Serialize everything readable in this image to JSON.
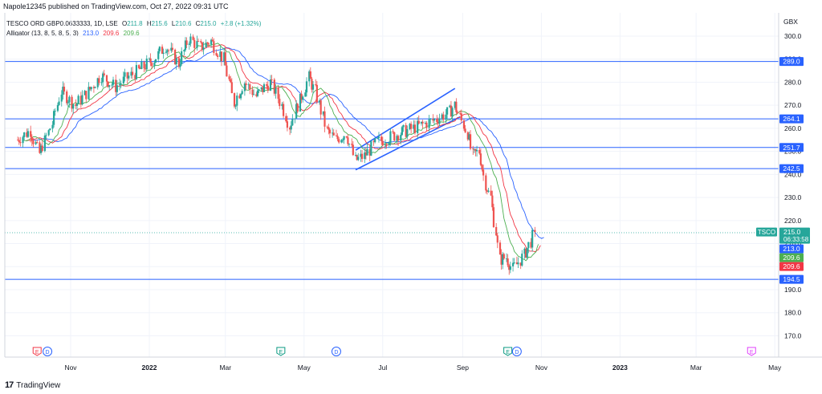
{
  "header": {
    "published": "Napole12345 published on TradingView.com, Oct 27, 2022 09:31 UTC"
  },
  "legend": {
    "symbol": "TESCO ORD GBP0.0633333, 1D, LSE",
    "open_label": "O",
    "open": "211.8",
    "high_label": "H",
    "high": "215.6",
    "low_label": "L",
    "low": "210.6",
    "close_label": "C",
    "close": "215.0",
    "change": "+2.8 (+1.32%)",
    "alligator_label": "Alligator (13, 8, 5, 8, 5, 3)",
    "jaw": "213.0",
    "teeth": "209.6",
    "lips": "209.6"
  },
  "footer": {
    "brand_mark": "17",
    "brand": "TradingView"
  },
  "colors": {
    "up": "#26a69a",
    "down": "#ef5350",
    "jaw": "#2962ff",
    "teeth": "#f23645",
    "lips": "#4caf50",
    "hline": "#2962ff",
    "earnings": "#f23645",
    "dividends": "#2962ff",
    "green_event": "#089981",
    "future_event": "#e040fb"
  },
  "chart_data": {
    "type": "candlestick",
    "currency": "GBX",
    "y_ticks": [
      "300.0",
      "290.0",
      "280.0",
      "270.0",
      "260.0",
      "250.0",
      "240.0",
      "230.0",
      "220.0",
      "210.0",
      "200.0",
      "190.0",
      "180.0",
      "170.0"
    ],
    "ylim": [
      160,
      306
    ],
    "x_labels": [
      "Nov",
      "2022",
      "Mar",
      "May",
      "Jul",
      "Sep",
      "Nov",
      "2023",
      "Mar",
      "May"
    ],
    "horizontal_levels": [
      {
        "value": 289.0,
        "label": "289.0"
      },
      {
        "value": 264.1,
        "label": "264.1"
      },
      {
        "value": 251.7,
        "label": "251.7"
      },
      {
        "value": 242.5,
        "label": "242.5"
      },
      {
        "value": 194.5,
        "label": "194.5"
      }
    ],
    "channel": {
      "upper": [
        {
          "date": "2022-06-10",
          "value": 250.5
        },
        {
          "date": "2022-08-26",
          "value": 277.3
        }
      ],
      "lower": [
        {
          "date": "2022-06-10",
          "value": 242.0
        },
        {
          "date": "2022-08-30",
          "value": 265.0
        }
      ]
    },
    "last_price": {
      "symbol": "TSCO",
      "value": "215.0",
      "countdown": "06:33:58"
    },
    "price_badges": [
      {
        "value": "213.0",
        "color": "#2962ff"
      },
      {
        "value": "209.6",
        "color": "#4caf50"
      },
      {
        "value": "209.6",
        "color": "#f23645"
      }
    ],
    "events": [
      {
        "date": "2021-10-06",
        "type": "E",
        "kind": "earnings"
      },
      {
        "date": "2021-10-14",
        "type": "D",
        "kind": "dividends"
      },
      {
        "date": "2022-04-13",
        "type": "E",
        "kind": "green_event"
      },
      {
        "date": "2022-05-26",
        "type": "D",
        "kind": "dividends"
      },
      {
        "date": "2022-10-06",
        "type": "E",
        "kind": "green_event"
      },
      {
        "date": "2022-10-13",
        "type": "D",
        "kind": "dividends"
      },
      {
        "date": "2023-04-13",
        "type": "E",
        "kind": "future_event"
      }
    ],
    "series": [
      {
        "name": "Alligator Jaw",
        "color": "#2962ff"
      },
      {
        "name": "Alligator Teeth",
        "color": "#f23645"
      },
      {
        "name": "Alligator Lips",
        "color": "#4caf50"
      }
    ],
    "close_path": [
      {
        "date": "2021-09-21",
        "close": 255
      },
      {
        "date": "2021-10-01",
        "close": 259
      },
      {
        "date": "2021-10-08",
        "close": 249
      },
      {
        "date": "2021-10-18",
        "close": 262
      },
      {
        "date": "2021-10-25",
        "close": 276
      },
      {
        "date": "2021-11-05",
        "close": 270
      },
      {
        "date": "2021-11-15",
        "close": 276
      },
      {
        "date": "2021-11-25",
        "close": 283
      },
      {
        "date": "2021-12-06",
        "close": 278
      },
      {
        "date": "2021-12-15",
        "close": 282
      },
      {
        "date": "2021-12-24",
        "close": 285
      },
      {
        "date": "2022-01-05",
        "close": 290
      },
      {
        "date": "2022-01-14",
        "close": 296
      },
      {
        "date": "2022-01-24",
        "close": 288
      },
      {
        "date": "2022-02-01",
        "close": 299
      },
      {
        "date": "2022-02-10",
        "close": 295
      },
      {
        "date": "2022-02-18",
        "close": 298
      },
      {
        "date": "2022-02-28",
        "close": 290
      },
      {
        "date": "2022-03-08",
        "close": 271
      },
      {
        "date": "2022-03-16",
        "close": 280
      },
      {
        "date": "2022-03-25",
        "close": 274
      },
      {
        "date": "2022-04-05",
        "close": 280
      },
      {
        "date": "2022-04-14",
        "close": 270
      },
      {
        "date": "2022-04-20",
        "close": 261
      },
      {
        "date": "2022-04-28",
        "close": 272
      },
      {
        "date": "2022-05-05",
        "close": 282
      },
      {
        "date": "2022-05-10",
        "close": 276
      },
      {
        "date": "2022-05-19",
        "close": 259
      },
      {
        "date": "2022-05-26",
        "close": 255
      },
      {
        "date": "2022-06-03",
        "close": 258
      },
      {
        "date": "2022-06-10",
        "close": 246
      },
      {
        "date": "2022-06-17",
        "close": 248
      },
      {
        "date": "2022-06-27",
        "close": 254
      },
      {
        "date": "2022-07-06",
        "close": 256
      },
      {
        "date": "2022-07-15",
        "close": 258
      },
      {
        "date": "2022-07-25",
        "close": 260
      },
      {
        "date": "2022-08-03",
        "close": 262
      },
      {
        "date": "2022-08-12",
        "close": 264
      },
      {
        "date": "2022-08-22",
        "close": 267
      },
      {
        "date": "2022-08-26",
        "close": 270
      },
      {
        "date": "2022-09-05",
        "close": 258
      },
      {
        "date": "2022-09-09",
        "close": 248
      },
      {
        "date": "2022-09-14",
        "close": 250
      },
      {
        "date": "2022-09-19",
        "close": 236
      },
      {
        "date": "2022-09-23",
        "close": 230
      },
      {
        "date": "2022-09-27",
        "close": 215
      },
      {
        "date": "2022-09-30",
        "close": 203
      },
      {
        "date": "2022-10-05",
        "close": 204
      },
      {
        "date": "2022-10-10",
        "close": 199
      },
      {
        "date": "2022-10-13",
        "close": 201
      },
      {
        "date": "2022-10-19",
        "close": 205
      },
      {
        "date": "2022-10-24",
        "close": 211
      },
      {
        "date": "2022-10-27",
        "close": 215
      }
    ]
  }
}
